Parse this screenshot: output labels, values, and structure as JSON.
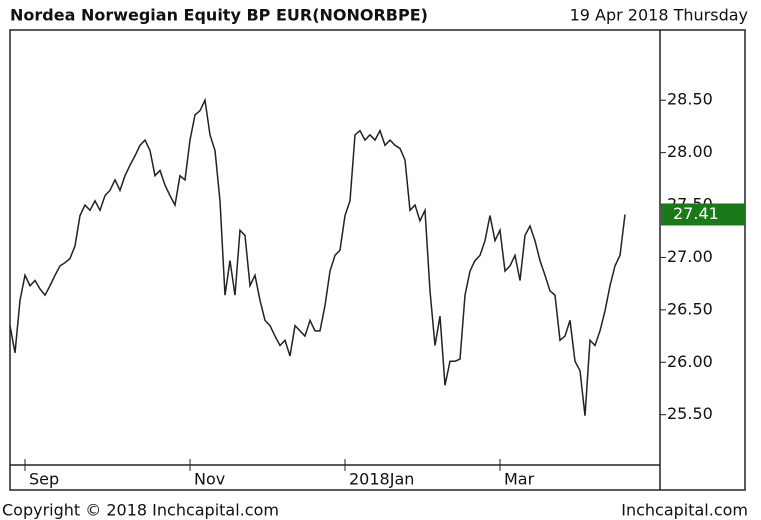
{
  "chart_data": {
    "type": "line",
    "title": "Nordea Norwegian Equity BP EUR(NONORBPE)",
    "subtitle": "19 Apr 2018 Thursday",
    "footer_left": "Copyright © 2018 Inchcapital.com",
    "footer_right": "Inchcapital.com",
    "xlim": [
      0,
      130
    ],
    "xticks": [
      {
        "value": 3,
        "label": "Sep"
      },
      {
        "value": 36,
        "label": "Nov"
      },
      {
        "value": 67,
        "label": "2018Jan"
      },
      {
        "value": 98,
        "label": "Mar"
      }
    ],
    "ylim": [
      25.02,
      29.17
    ],
    "yticks": [
      {
        "value": 25.5,
        "label": "25.50"
      },
      {
        "value": 26,
        "label": "26.00"
      },
      {
        "value": 26.5,
        "label": "26.50"
      },
      {
        "value": 27,
        "label": "27.00"
      },
      {
        "value": 27.5,
        "label": "27.50"
      },
      {
        "value": 28,
        "label": "28.00"
      },
      {
        "value": 28.5,
        "label": "28.50"
      }
    ],
    "last_label_color": "#1a7a1a",
    "series": [
      {
        "color": "#222222",
        "values": [
          26.35,
          26.09,
          26.59,
          26.83,
          26.73,
          26.78,
          26.7,
          26.64,
          26.73,
          26.83,
          26.92,
          26.95,
          26.99,
          27.11,
          27.4,
          27.5,
          27.45,
          27.54,
          27.45,
          27.59,
          27.64,
          27.74,
          27.64,
          27.78,
          27.88,
          27.97,
          28.07,
          28.12,
          28.02,
          27.78,
          27.83,
          27.69,
          27.59,
          27.5,
          27.78,
          27.74,
          28.12,
          28.36,
          28.4,
          28.5,
          28.17,
          28.02,
          27.54,
          26.64,
          26.97,
          26.64,
          27.26,
          27.21,
          26.73,
          26.83,
          26.59,
          26.4,
          26.35,
          26.25,
          26.16,
          26.21,
          26.06,
          26.35,
          26.3,
          26.25,
          26.4,
          26.3,
          26.3,
          26.54,
          26.87,
          27.02,
          27.07,
          27.4,
          27.54,
          28.17,
          28.21,
          28.12,
          28.17,
          28.12,
          28.21,
          28.07,
          28.12,
          28.07,
          28.04,
          27.93,
          27.45,
          27.5,
          27.35,
          27.45,
          26.68,
          26.16,
          26.44,
          25.78,
          26.01,
          26.01,
          26.03,
          26.64,
          26.87,
          26.97,
          27.02,
          27.16,
          27.4,
          27.16,
          27.26,
          26.87,
          26.92,
          27.02,
          26.78,
          27.21,
          27.3,
          27.16,
          26.97,
          26.83,
          26.68,
          26.64,
          26.21,
          26.25,
          26.4,
          26.01,
          25.92,
          25.49,
          26.21,
          26.16,
          26.3,
          26.49,
          26.73,
          26.92,
          27.02,
          27.41
        ]
      }
    ]
  }
}
